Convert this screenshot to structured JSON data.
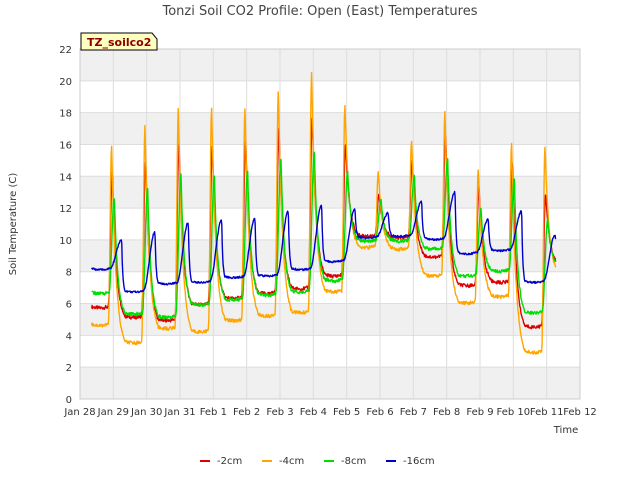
{
  "chart_data": {
    "type": "line",
    "title": "Tonzi Soil CO2 Profile: Open (East) Temperatures",
    "xlabel": "Time",
    "ylabel": "Soil Temperature (C)",
    "site_label": "TZ_soilco2",
    "ylim": [
      0,
      22
    ],
    "yticks": [
      0,
      2,
      4,
      6,
      8,
      10,
      12,
      14,
      16,
      18,
      20,
      22
    ],
    "xlim": [
      0,
      15
    ],
    "xticks": [
      0,
      1,
      2,
      3,
      4,
      5,
      6,
      7,
      8,
      9,
      10,
      11,
      12,
      13,
      14,
      15
    ],
    "xtick_labels": [
      "Jan 28",
      "Jan 29",
      "Jan 30",
      "Jan 31",
      "Feb 1",
      "Feb 2",
      "Feb 3",
      "Feb 4",
      "Feb 5",
      "Feb 6",
      "Feb 7",
      "Feb 8",
      "Feb 9",
      "Feb 10",
      "Feb 11",
      "Feb 12"
    ],
    "grid": true,
    "legend_position": "bottom",
    "days": [
      0,
      1,
      2,
      3,
      4,
      5,
      6,
      7,
      8,
      9,
      10,
      11,
      12,
      13
    ],
    "series": [
      {
        "name": "-2cm",
        "color": "#dd0000",
        "min": [
          5.8,
          5.2,
          5.0,
          6.0,
          6.4,
          6.7,
          7.0,
          7.8,
          10.3,
          10.2,
          9.0,
          7.2,
          7.4,
          4.6
        ],
        "peak": [
          14.3,
          15.1,
          16.2,
          16.0,
          16.3,
          17.1,
          17.8,
          16.0,
          12.9,
          15.0,
          16.7,
          13.4,
          15.0,
          13.0
        ],
        "end": 8.5
      },
      {
        "name": "-4cm",
        "color": "#ffa500",
        "min": [
          4.7,
          3.6,
          4.5,
          4.3,
          5.0,
          5.3,
          5.5,
          6.8,
          9.6,
          9.5,
          7.8,
          6.1,
          6.5,
          3.0
        ],
        "peak": [
          16.0,
          17.1,
          18.2,
          18.4,
          18.3,
          19.4,
          20.5,
          18.4,
          14.3,
          16.3,
          18.0,
          14.5,
          16.1,
          15.8
        ],
        "end": 7.9
      },
      {
        "name": "-8cm",
        "color": "#00dd00",
        "min": [
          6.7,
          5.4,
          5.2,
          6.0,
          6.3,
          6.6,
          6.8,
          7.5,
          10.0,
          10.0,
          9.5,
          7.8,
          8.1,
          5.5
        ],
        "peak": [
          12.7,
          13.3,
          14.1,
          14.0,
          14.3,
          15.1,
          15.6,
          14.3,
          12.5,
          14.0,
          15.1,
          12.0,
          13.9,
          11.3
        ],
        "end": 8.5
      },
      {
        "name": "-16cm",
        "color": "#0000cc",
        "min": [
          8.2,
          6.8,
          7.3,
          7.4,
          7.7,
          7.8,
          8.2,
          8.7,
          10.2,
          10.3,
          10.1,
          9.2,
          9.4,
          7.4
        ],
        "peak": [
          10.0,
          10.5,
          11.1,
          11.3,
          11.4,
          11.8,
          12.2,
          12.0,
          11.7,
          12.4,
          13.0,
          11.3,
          11.8,
          10.3
        ],
        "end": 9.6
      }
    ]
  }
}
